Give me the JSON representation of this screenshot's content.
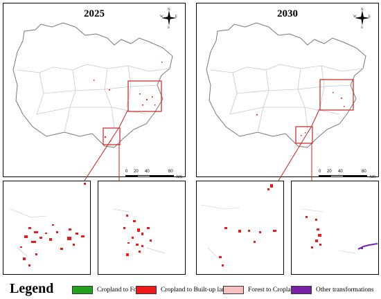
{
  "maps": [
    {
      "year": "2025"
    },
    {
      "year": "2030"
    }
  ],
  "compass": {
    "n": "N",
    "s": "S",
    "e": "E",
    "w": "W"
  },
  "scale": {
    "ticks": [
      "0",
      "20",
      "40",
      "80"
    ],
    "unit": "km"
  },
  "legend": {
    "title": "Legend",
    "items": [
      {
        "label": "Cropland to Forest",
        "color": "#22a11e"
      },
      {
        "label": "Cropland to Built-up land",
        "color": "#ee1a1a"
      },
      {
        "label": "Forest to Cropland",
        "color": "#f6c0c0"
      },
      {
        "label": "Other transformations",
        "color": "#7a1fa8"
      }
    ]
  },
  "colors": {
    "highlight": "#cc2020",
    "boundary": "#777777",
    "inner_boundary": "#c8c8c8"
  }
}
